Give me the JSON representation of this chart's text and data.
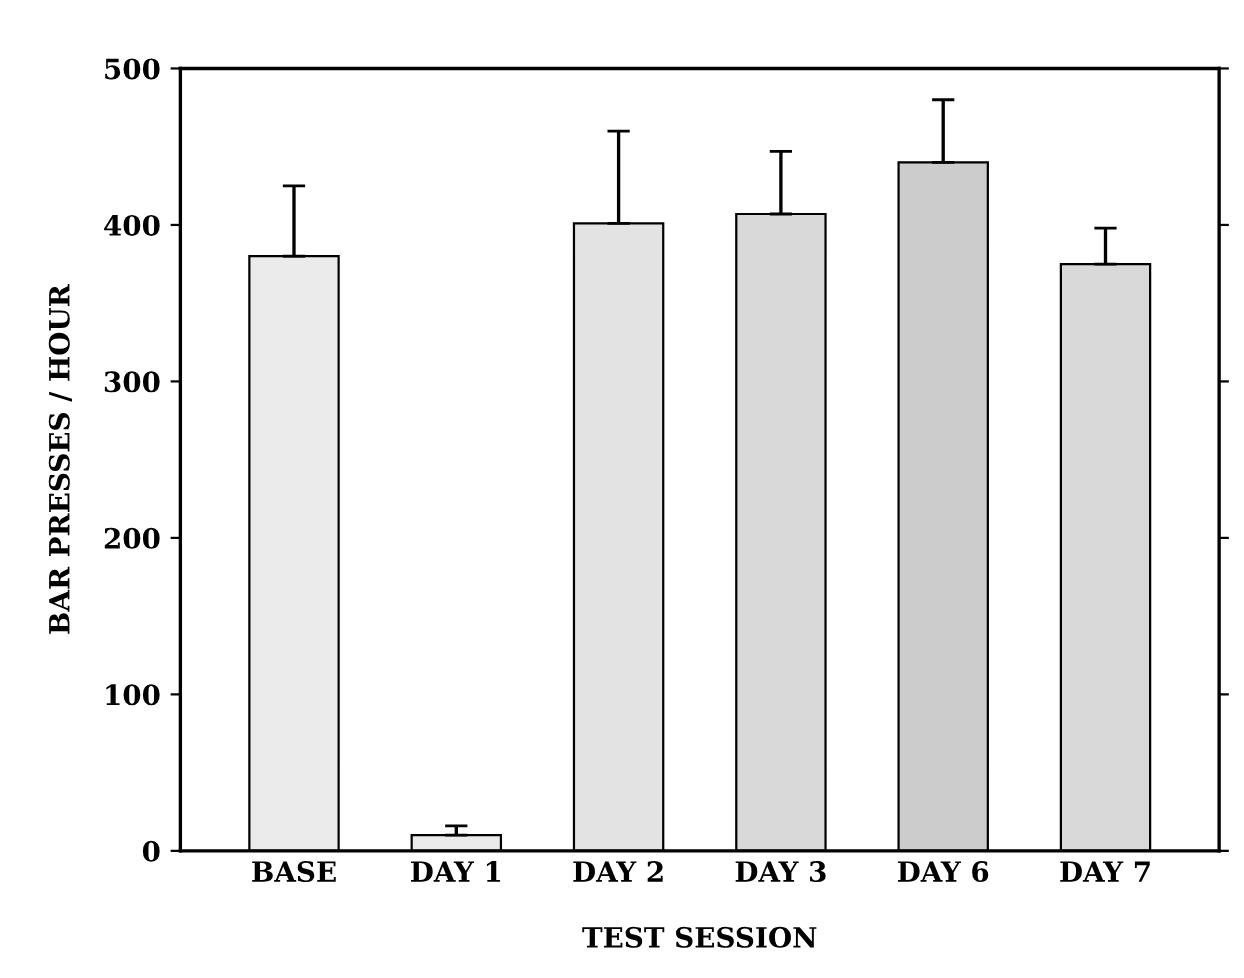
{
  "chart_data": {
    "type": "bar",
    "xlabel": "TEST SESSION",
    "ylabel": "BAR PRESSES / HOUR",
    "categories": [
      "BASE",
      "DAY 1",
      "DAY 2",
      "DAY 3",
      "DAY 6",
      "DAY 7"
    ],
    "values": [
      380,
      10,
      401,
      407,
      440,
      375
    ],
    "errors": [
      [
        380,
        425
      ],
      [
        10,
        16
      ],
      [
        401,
        460
      ],
      [
        407,
        447
      ],
      [
        440,
        480
      ],
      [
        375,
        398
      ]
    ],
    "colors": [
      "#ebebeb",
      "#ebebeb",
      "#e3e3e3",
      "#d9d9d9",
      "#cccccc",
      "#d9d9d9"
    ],
    "ylim": [
      0,
      500
    ],
    "yticks": [
      0,
      100,
      200,
      300,
      400,
      500
    ],
    "grid": false,
    "legend": false
  }
}
